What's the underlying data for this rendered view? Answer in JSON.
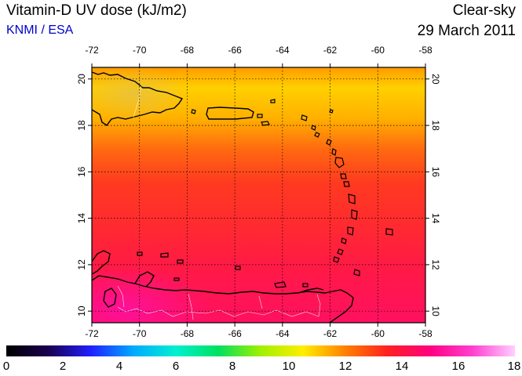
{
  "header": {
    "title": "Vitamin-D UV dose (kJ/m2)",
    "subtitle": "KNMI / ESA",
    "product": "Clear-sky",
    "date": "29 March 2011"
  },
  "colors": {
    "subtitle": "#0000cc",
    "coast": "#000000",
    "border": "#ffffff"
  },
  "map": {
    "lon_range": [
      -72,
      -58
    ],
    "lat_range": [
      9.5,
      20.5
    ],
    "lon_ticks": [
      "-72",
      "-70",
      "-68",
      "-66",
      "-64",
      "-62",
      "-60",
      "-58"
    ],
    "lat_ticks": [
      "10",
      "12",
      "14",
      "16",
      "18",
      "20"
    ]
  },
  "colorbar": {
    "min": 0,
    "max": 18,
    "ticks": [
      "0",
      "2",
      "4",
      "6",
      "8",
      "10",
      "12",
      "14",
      "16",
      "18"
    ],
    "stops": [
      "#000000",
      "#1a0050",
      "#2020ff",
      "#00aaff",
      "#00f0d0",
      "#00e060",
      "#a0f000",
      "#ffee00",
      "#ff8000",
      "#ff2020",
      "#ff0080",
      "#ff40d0",
      "#ffd0ff"
    ]
  }
}
